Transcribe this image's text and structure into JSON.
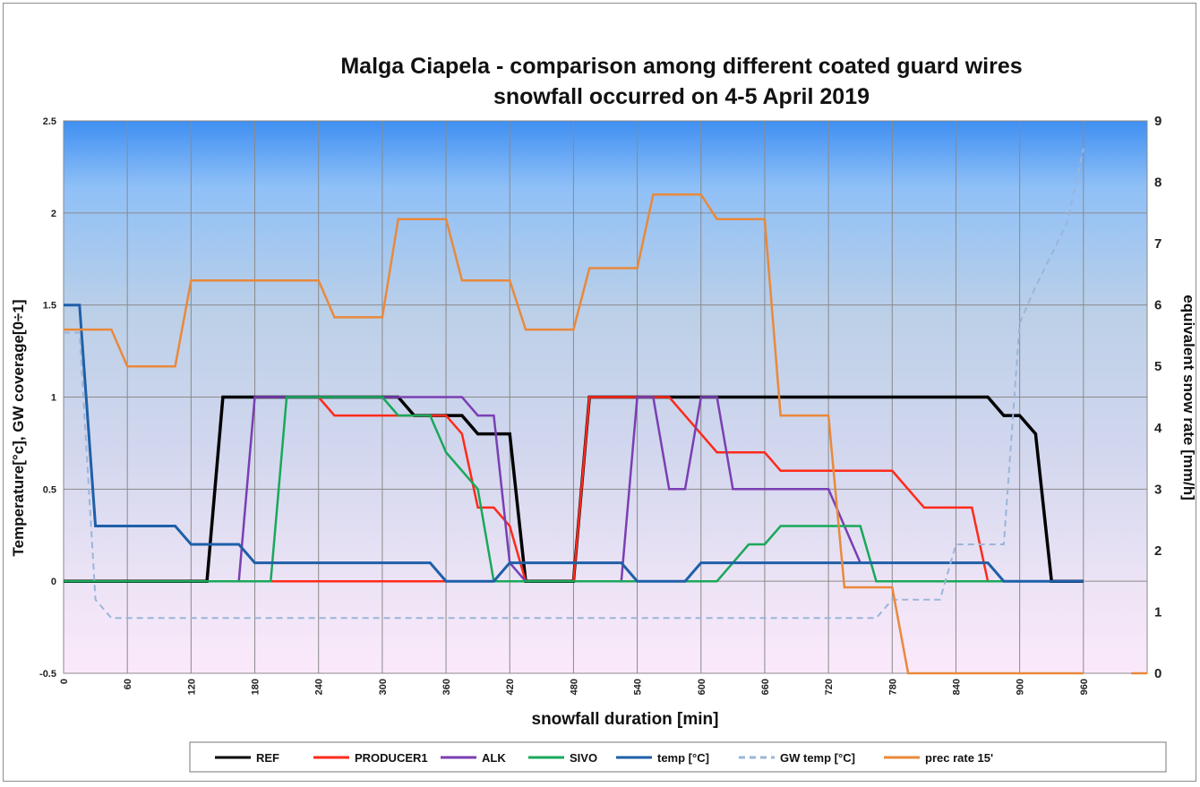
{
  "chart_data": {
    "type": "line",
    "title_line1": "Malga Ciapela - comparison among different coated guard wires",
    "title_line2": "snowfall occurred on 4-5 April 2019",
    "xlabel": "snowfall duration [min]",
    "ylabel_left": "Temperature[°c],  GW coverage[0÷1]",
    "ylabel_right": "equivalent snow rate [mm/h]",
    "xlim": [
      0,
      1020
    ],
    "x_ticks": [
      0,
      60,
      120,
      180,
      240,
      300,
      360,
      420,
      480,
      540,
      600,
      660,
      720,
      780,
      840,
      900,
      960
    ],
    "ylim_left": [
      -0.5,
      2.5
    ],
    "y_ticks_left": [
      "-0.5",
      "0",
      "0.5",
      "1",
      "1.5",
      "2",
      "2.5"
    ],
    "ylim_right": [
      0,
      9
    ],
    "y_ticks_right": [
      "0",
      "1",
      "2",
      "3",
      "4",
      "5",
      "6",
      "7",
      "8",
      "9"
    ],
    "grid": true,
    "legend_position": "bottom",
    "series": [
      {
        "name": "REF",
        "axis": "left",
        "color": "#000000",
        "width": 3.5,
        "dash": "",
        "points": [
          [
            0,
            0
          ],
          [
            135,
            0
          ],
          [
            150,
            1
          ],
          [
            315,
            1
          ],
          [
            330,
            0.9
          ],
          [
            375,
            0.9
          ],
          [
            390,
            0.8
          ],
          [
            420,
            0.8
          ],
          [
            435,
            0
          ],
          [
            480,
            0
          ],
          [
            495,
            1
          ],
          [
            870,
            1
          ],
          [
            885,
            0.9
          ],
          [
            900,
            0.9
          ],
          [
            915,
            0.8
          ],
          [
            930,
            0
          ],
          [
            960,
            0
          ]
        ]
      },
      {
        "name": "PRODUCER1",
        "axis": "left",
        "color": "#ff2a1a",
        "width": 2.5,
        "dash": "",
        "points": [
          [
            0,
            0
          ],
          [
            480,
            0
          ],
          [
            495,
            1
          ],
          [
            570,
            1
          ],
          [
            615,
            0.7
          ],
          [
            660,
            0.7
          ],
          [
            675,
            0.6
          ],
          [
            780,
            0.6
          ],
          [
            810,
            0.4
          ],
          [
            855,
            0.4
          ],
          [
            870,
            0
          ]
        ]
      },
      {
        "name": "PRODUCER1_seg1",
        "axis": "left",
        "color": "#ff2a1a",
        "width": 2.5,
        "dash": "",
        "points": [
          [
            240,
            1
          ],
          [
            255,
            0.9
          ],
          [
            360,
            0.9
          ],
          [
            375,
            0.8
          ],
          [
            390,
            0.4
          ],
          [
            405,
            0.4
          ],
          [
            420,
            0.3
          ],
          [
            435,
            0
          ]
        ]
      },
      {
        "name": "ALK",
        "axis": "left",
        "color": "#7a3fb3",
        "width": 2.5,
        "dash": "",
        "points": [
          [
            0,
            0
          ],
          [
            165,
            0
          ],
          [
            180,
            1
          ],
          [
            375,
            1
          ],
          [
            390,
            0.9
          ],
          [
            405,
            0.9
          ],
          [
            420,
            0.1
          ],
          [
            435,
            0
          ],
          [
            525,
            0
          ],
          [
            540,
            1
          ],
          [
            555,
            1
          ],
          [
            570,
            0.5
          ],
          [
            585,
            0.5
          ],
          [
            600,
            1
          ],
          [
            615,
            1
          ],
          [
            630,
            0.5
          ],
          [
            720,
            0.5
          ],
          [
            750,
            0.1
          ],
          [
            870,
            0.1
          ],
          [
            885,
            0
          ]
        ]
      },
      {
        "name": "SIVO",
        "axis": "left",
        "color": "#19a85a",
        "width": 2.5,
        "dash": "",
        "points": [
          [
            0,
            0
          ],
          [
            195,
            0
          ],
          [
            210,
            1
          ],
          [
            300,
            1
          ],
          [
            315,
            0.9
          ],
          [
            345,
            0.9
          ],
          [
            360,
            0.7
          ],
          [
            390,
            0.5
          ],
          [
            405,
            0
          ],
          [
            615,
            0
          ],
          [
            645,
            0.2
          ],
          [
            660,
            0.2
          ],
          [
            675,
            0.3
          ],
          [
            750,
            0.3
          ],
          [
            765,
            0
          ],
          [
            960,
            0
          ]
        ]
      },
      {
        "name": "temp [°C]",
        "axis": "left",
        "color": "#1f5fa8",
        "width": 3,
        "dash": "",
        "points": [
          [
            0,
            1.5
          ],
          [
            15,
            1.5
          ],
          [
            30,
            0.3
          ],
          [
            105,
            0.3
          ],
          [
            120,
            0.2
          ],
          [
            165,
            0.2
          ],
          [
            180,
            0.1
          ],
          [
            345,
            0.1
          ],
          [
            360,
            0
          ],
          [
            405,
            0
          ],
          [
            420,
            0.1
          ],
          [
            525,
            0.1
          ],
          [
            540,
            0
          ],
          [
            585,
            0
          ],
          [
            600,
            0.1
          ],
          [
            870,
            0.1
          ],
          [
            885,
            0
          ],
          [
            960,
            0
          ]
        ]
      },
      {
        "name": "GW temp [°C]",
        "axis": "left",
        "color": "#9bb5d8",
        "width": 2,
        "dash": "7,5",
        "points": [
          [
            0,
            1.35
          ],
          [
            15,
            1.35
          ],
          [
            30,
            -0.1
          ],
          [
            45,
            -0.2
          ],
          [
            765,
            -0.2
          ],
          [
            780,
            -0.1
          ],
          [
            825,
            -0.1
          ],
          [
            840,
            0.2
          ],
          [
            885,
            0.2
          ],
          [
            900,
            1.4
          ],
          [
            915,
            1.6
          ],
          [
            945,
            1.95
          ],
          [
            960,
            2.35
          ]
        ]
      },
      {
        "name": "prec rate 15'",
        "axis": "right",
        "color": "#e9893b",
        "width": 2.5,
        "dash": "",
        "points": [
          [
            0,
            5.6
          ],
          [
            45,
            5.6
          ],
          [
            60,
            5
          ],
          [
            105,
            5
          ],
          [
            120,
            6.4
          ],
          [
            240,
            6.4
          ],
          [
            255,
            5.8
          ],
          [
            300,
            5.8
          ],
          [
            315,
            7.4
          ],
          [
            360,
            7.4
          ],
          [
            375,
            6.4
          ],
          [
            420,
            6.4
          ],
          [
            435,
            5.6
          ],
          [
            480,
            5.6
          ],
          [
            495,
            6.6
          ],
          [
            540,
            6.6
          ],
          [
            555,
            7.8
          ],
          [
            600,
            7.8
          ],
          [
            615,
            7.4
          ],
          [
            660,
            7.4
          ],
          [
            675,
            4.2
          ],
          [
            720,
            4.2
          ],
          [
            735,
            1.4
          ],
          [
            780,
            1.4
          ],
          [
            795,
            0
          ],
          [
            960,
            0
          ]
        ]
      },
      {
        "name": "prec_tail",
        "axis": "right",
        "color": "#e9893b",
        "width": 2.5,
        "dash": "",
        "points": [
          [
            1005,
            0
          ],
          [
            1020,
            0
          ]
        ]
      }
    ],
    "legend": [
      {
        "label": "REF",
        "color": "#000000",
        "dash": ""
      },
      {
        "label": "PRODUCER1",
        "color": "#ff2a1a",
        "dash": ""
      },
      {
        "label": "ALK",
        "color": "#7a3fb3",
        "dash": ""
      },
      {
        "label": "SIVO",
        "color": "#19a85a",
        "dash": ""
      },
      {
        "label": "temp [°C]",
        "color": "#1f5fa8",
        "dash": ""
      },
      {
        "label": "GW temp [°C]",
        "color": "#9bb5d8",
        "dash": "7,5"
      },
      {
        "label": "prec rate 15'",
        "color": "#e9893b",
        "dash": ""
      }
    ]
  }
}
